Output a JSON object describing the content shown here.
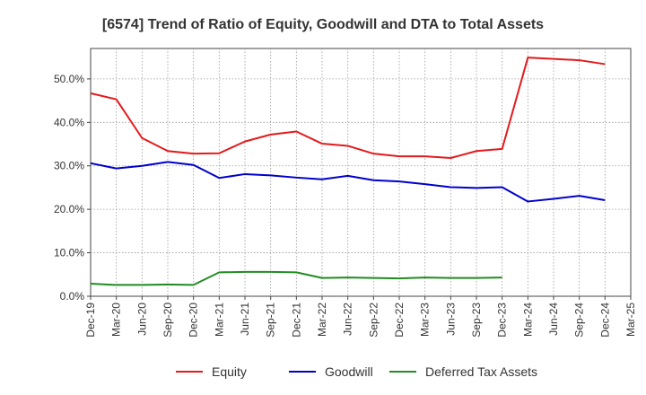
{
  "chart_data": {
    "type": "line",
    "title": "[6574]  Trend of Ratio of Equity, Goodwill and DTA to Total Assets",
    "xlabel": "",
    "ylabel": "",
    "x": [
      "Dec-19",
      "Mar-20",
      "Jun-20",
      "Sep-20",
      "Dec-20",
      "Mar-21",
      "Jun-21",
      "Sep-21",
      "Dec-21",
      "Mar-22",
      "Jun-22",
      "Sep-22",
      "Dec-22",
      "Mar-23",
      "Jun-23",
      "Sep-23",
      "Dec-23",
      "Mar-24",
      "Jun-24",
      "Sep-24",
      "Dec-24",
      "Mar-25"
    ],
    "ylim": [
      0,
      57
    ],
    "yticks": [
      0,
      10,
      20,
      30,
      40,
      50
    ],
    "ytick_labels": [
      "0.0%",
      "10.0%",
      "20.0%",
      "30.0%",
      "40.0%",
      "50.0%"
    ],
    "grid": true,
    "legend_position": "bottom",
    "series": [
      {
        "name": "Equity",
        "color": "#e31a1c",
        "values": [
          46.7,
          45.3,
          36.4,
          33.4,
          32.8,
          32.9,
          35.6,
          37.2,
          37.9,
          35.1,
          34.6,
          32.8,
          32.2,
          32.2,
          31.8,
          33.4,
          33.9,
          54.9,
          54.6,
          54.3,
          53.4,
          null
        ]
      },
      {
        "name": "Goodwill",
        "color": "#0000cc",
        "values": [
          30.6,
          29.4,
          30.0,
          30.9,
          30.2,
          27.2,
          28.1,
          27.8,
          27.3,
          26.9,
          27.7,
          26.7,
          26.4,
          25.8,
          25.1,
          24.9,
          25.1,
          21.8,
          22.4,
          23.1,
          22.1,
          null
        ]
      },
      {
        "name": "Deferred Tax Assets",
        "color": "#228b22",
        "values": [
          2.9,
          2.6,
          2.6,
          2.7,
          2.6,
          5.5,
          5.6,
          5.6,
          5.5,
          4.2,
          4.3,
          4.2,
          4.1,
          4.3,
          4.2,
          4.2,
          4.3,
          null,
          null,
          null,
          null,
          null
        ]
      }
    ]
  }
}
